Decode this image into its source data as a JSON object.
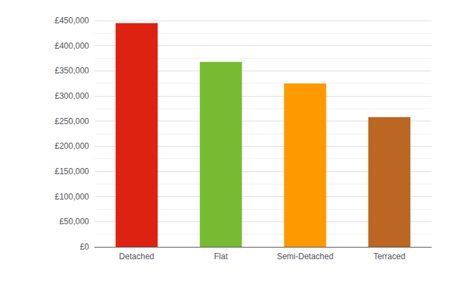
{
  "chart_data": {
    "type": "bar",
    "categories": [
      "Detached",
      "Flat",
      "Semi-Detached",
      "Terraced"
    ],
    "values": [
      445000,
      368000,
      325000,
      258000
    ],
    "colors": [
      "#dd2211",
      "#77bb33",
      "#ff9900",
      "#bb6622"
    ],
    "ylim": [
      0,
      450000
    ],
    "yticks": [
      {
        "value": 0,
        "label": "£0"
      },
      {
        "value": 50000,
        "label": "£50,000"
      },
      {
        "value": 100000,
        "label": "£100,000"
      },
      {
        "value": 150000,
        "label": "£150,000"
      },
      {
        "value": 200000,
        "label": "£200,000"
      },
      {
        "value": 250000,
        "label": "£250,000"
      },
      {
        "value": 300000,
        "label": "£300,000"
      },
      {
        "value": 350000,
        "label": "£350,000"
      },
      {
        "value": 400000,
        "label": "£400,000"
      },
      {
        "value": 450000,
        "label": "£450,000"
      }
    ],
    "grid": true
  }
}
